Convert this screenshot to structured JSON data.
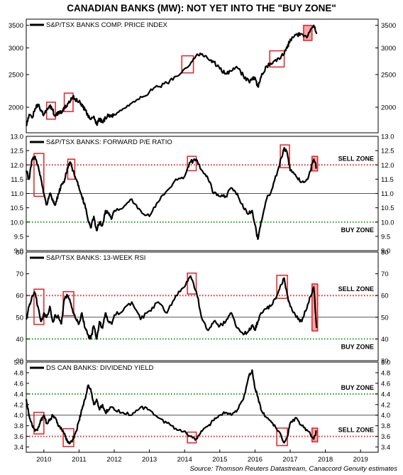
{
  "title": "CANADIAN BANKS (MW): NOT YET INTO THE \"BUY ZONE\"",
  "source": "Source: Thomson Reuters Datastream, Canaccord Genuity estimates",
  "colors": {
    "line": "#000000",
    "highlight_stroke": "#e32323",
    "highlight_fill": "#f4a6a6",
    "sell_line": "#e32323",
    "buy_line": "#1a9a1a",
    "ref_line": "#555555"
  },
  "chart_data": [
    {
      "type": "line",
      "legend": "S&P/TSX BANKS COMP. PRICE INDEX",
      "scale": "log",
      "ylim": [
        1680,
        3650
      ],
      "yticks": [
        {
          "value": 2000,
          "label": "2000"
        },
        {
          "value": 2500,
          "label": "2500"
        },
        {
          "value": 3000,
          "label": "3000"
        },
        {
          "value": 3500,
          "label": "3500"
        }
      ],
      "x": [
        2009.5,
        2009.58,
        2009.67,
        2009.75,
        2009.83,
        2009.92,
        2010.0,
        2010.08,
        2010.17,
        2010.25,
        2010.33,
        2010.42,
        2010.5,
        2010.58,
        2010.67,
        2010.75,
        2010.83,
        2010.92,
        2011.0,
        2011.08,
        2011.17,
        2011.25,
        2011.33,
        2011.42,
        2011.5,
        2011.58,
        2011.67,
        2011.75,
        2011.83,
        2011.92,
        2012.0,
        2012.25,
        2012.5,
        2012.75,
        2013.0,
        2013.25,
        2013.5,
        2013.75,
        2014.0,
        2014.17,
        2014.33,
        2014.5,
        2014.67,
        2014.83,
        2015.0,
        2015.17,
        2015.33,
        2015.5,
        2015.67,
        2015.83,
        2015.92,
        2016.0,
        2016.08,
        2016.17,
        2016.33,
        2016.5,
        2016.67,
        2016.83,
        2016.92,
        2017.0,
        2017.17,
        2017.33,
        2017.5,
        2017.67,
        2017.75
      ],
      "values": [
        1760,
        1900,
        1860,
        1980,
        2040,
        1960,
        1900,
        1960,
        2020,
        1960,
        1880,
        1940,
        1920,
        1980,
        2040,
        2080,
        2160,
        2100,
        2080,
        2020,
        1960,
        1900,
        1840,
        1880,
        1780,
        1850,
        1800,
        1860,
        1900,
        1880,
        1900,
        1980,
        2060,
        2150,
        2220,
        2300,
        2360,
        2470,
        2600,
        2700,
        2850,
        2880,
        2780,
        2720,
        2600,
        2520,
        2560,
        2620,
        2480,
        2380,
        2440,
        2450,
        2300,
        2450,
        2650,
        2700,
        2800,
        2880,
        3000,
        3180,
        3280,
        3300,
        3250,
        3500,
        3300
      ],
      "highlights": [
        [
          2010.08,
          2010.33
        ],
        [
          2010.58,
          2010.83
        ],
        [
          2013.92,
          2014.25
        ],
        [
          2016.42,
          2016.83
        ],
        [
          2017.38,
          2017.62
        ]
      ]
    },
    {
      "type": "line",
      "legend": "S&P/TSX BANKS: FORWARD P/E RATIO",
      "ylim": [
        9.0,
        13.0
      ],
      "yticks": [
        {
          "value": 9.0,
          "label": "9.0"
        },
        {
          "value": 9.5,
          "label": "9.5"
        },
        {
          "value": 10.0,
          "label": "10.0"
        },
        {
          "value": 10.5,
          "label": "10.5"
        },
        {
          "value": 11.0,
          "label": "11.0"
        },
        {
          "value": 11.5,
          "label": "11.5"
        },
        {
          "value": 12.0,
          "label": "12.0"
        },
        {
          "value": 12.5,
          "label": "12.5"
        },
        {
          "value": 13.0,
          "label": "13.0"
        }
      ],
      "sell_zone": {
        "value": 12.0,
        "label": "SELL ZONE"
      },
      "buy_zone": {
        "value": 10.0,
        "label": "BUY ZONE"
      },
      "ref_line": 11.0,
      "x": [
        2009.5,
        2009.58,
        2009.67,
        2009.75,
        2009.83,
        2009.92,
        2010.0,
        2010.08,
        2010.17,
        2010.25,
        2010.33,
        2010.42,
        2010.5,
        2010.58,
        2010.67,
        2010.75,
        2010.83,
        2010.92,
        2011.0,
        2011.08,
        2011.17,
        2011.25,
        2011.33,
        2011.42,
        2011.5,
        2011.58,
        2011.67,
        2011.75,
        2011.83,
        2011.92,
        2012.0,
        2012.25,
        2012.5,
        2012.75,
        2013.0,
        2013.25,
        2013.5,
        2013.75,
        2014.0,
        2014.17,
        2014.33,
        2014.5,
        2014.67,
        2014.83,
        2015.0,
        2015.17,
        2015.33,
        2015.5,
        2015.67,
        2015.83,
        2015.92,
        2016.0,
        2016.08,
        2016.17,
        2016.33,
        2016.5,
        2016.67,
        2016.83,
        2016.92,
        2017.0,
        2017.17,
        2017.33,
        2017.5,
        2017.67,
        2017.75
      ],
      "values": [
        11.8,
        11.5,
        12.2,
        12.3,
        12.0,
        11.5,
        11.0,
        10.6,
        11.0,
        10.8,
        10.6,
        11.0,
        11.3,
        11.4,
        11.9,
        12.1,
        11.8,
        11.5,
        11.2,
        10.9,
        10.6,
        10.1,
        9.8,
        10.2,
        9.7,
        10.0,
        9.9,
        10.4,
        10.3,
        10.1,
        10.4,
        10.5,
        10.8,
        10.4,
        10.2,
        10.7,
        11.1,
        11.5,
        11.6,
        12.1,
        12.2,
        11.8,
        11.5,
        11.0,
        10.9,
        10.9,
        11.2,
        11.0,
        10.5,
        10.3,
        10.4,
        9.9,
        9.4,
        10.0,
        10.8,
        11.2,
        11.9,
        12.6,
        12.4,
        11.8,
        11.6,
        11.4,
        11.5,
        12.2,
        11.9
      ],
      "highlights": [
        [
          2009.72,
          2010.0
        ],
        [
          2010.68,
          2010.88
        ],
        [
          2014.08,
          2014.33
        ],
        [
          2016.72,
          2016.98
        ],
        [
          2017.62,
          2017.78
        ]
      ]
    },
    {
      "type": "line",
      "legend": "S&P/TSX BANKS: 13-WEEK RSI",
      "ylim": [
        30,
        80
      ],
      "yticks": [
        {
          "value": 30,
          "label": "30"
        },
        {
          "value": 40,
          "label": "40"
        },
        {
          "value": 50,
          "label": "50"
        },
        {
          "value": 60,
          "label": "60"
        },
        {
          "value": 70,
          "label": "70"
        },
        {
          "value": 80,
          "label": "80"
        }
      ],
      "sell_zone": {
        "value": 60,
        "label": "SELL ZONE"
      },
      "buy_zone": {
        "value": 40,
        "label": "BUY ZONE"
      },
      "ref_line": 50,
      "x": [
        2009.5,
        2009.58,
        2009.67,
        2009.75,
        2009.83,
        2009.92,
        2010.0,
        2010.08,
        2010.17,
        2010.25,
        2010.33,
        2010.42,
        2010.5,
        2010.58,
        2010.67,
        2010.75,
        2010.83,
        2010.92,
        2011.0,
        2011.08,
        2011.17,
        2011.25,
        2011.33,
        2011.42,
        2011.5,
        2011.58,
        2011.67,
        2011.75,
        2011.83,
        2011.92,
        2012.0,
        2012.25,
        2012.5,
        2012.75,
        2013.0,
        2013.25,
        2013.5,
        2013.75,
        2014.0,
        2014.17,
        2014.33,
        2014.5,
        2014.67,
        2014.83,
        2015.0,
        2015.17,
        2015.33,
        2015.5,
        2015.67,
        2015.83,
        2015.92,
        2016.0,
        2016.08,
        2016.17,
        2016.33,
        2016.5,
        2016.67,
        2016.83,
        2016.92,
        2017.0,
        2017.17,
        2017.33,
        2017.5,
        2017.67,
        2017.75
      ],
      "values": [
        49,
        55,
        60,
        61,
        55,
        48,
        52,
        50,
        55,
        48,
        51,
        50,
        47,
        58,
        60,
        57,
        52,
        49,
        47,
        52,
        45,
        42,
        40,
        46,
        40,
        48,
        45,
        52,
        48,
        47,
        51,
        53,
        57,
        49,
        53,
        57,
        52,
        60,
        64,
        69,
        62,
        49,
        44,
        48,
        46,
        48,
        52,
        45,
        42,
        44,
        46,
        44,
        48,
        52,
        54,
        56,
        62,
        68,
        60,
        55,
        50,
        48,
        56,
        64,
        45
      ],
      "highlights": [
        [
          2009.72,
          2010.0
        ],
        [
          2010.55,
          2010.85
        ],
        [
          2014.08,
          2014.33
        ],
        [
          2016.62,
          2016.92
        ],
        [
          2017.62,
          2017.78
        ]
      ]
    },
    {
      "type": "line",
      "legend": "DS CAN BANKS: DIVIDEND YIELD",
      "ylim": [
        3.3,
        5.0
      ],
      "yticks": [
        {
          "value": 3.4,
          "label": "3.4"
        },
        {
          "value": 3.6,
          "label": "3.6"
        },
        {
          "value": 3.8,
          "label": "3.8"
        },
        {
          "value": 4.0,
          "label": "4.0"
        },
        {
          "value": 4.2,
          "label": "4.2"
        },
        {
          "value": 4.4,
          "label": "4.4"
        },
        {
          "value": 4.6,
          "label": "4.6"
        },
        {
          "value": 4.8,
          "label": "4.8"
        },
        {
          "value": 5.0,
          "label": "5.0"
        }
      ],
      "buy_zone": {
        "value": 4.4,
        "label": "BUY ZONE"
      },
      "sell_zone": {
        "value": 3.6,
        "label": "SELL ZONE"
      },
      "ref_line": 4.0,
      "x": [
        2009.5,
        2009.58,
        2009.67,
        2009.75,
        2009.83,
        2009.92,
        2010.0,
        2010.08,
        2010.17,
        2010.25,
        2010.33,
        2010.42,
        2010.5,
        2010.58,
        2010.67,
        2010.75,
        2010.83,
        2010.92,
        2011.0,
        2011.08,
        2011.17,
        2011.25,
        2011.33,
        2011.42,
        2011.5,
        2011.58,
        2011.67,
        2011.75,
        2011.83,
        2011.92,
        2012.0,
        2012.25,
        2012.5,
        2012.75,
        2013.0,
        2013.25,
        2013.5,
        2013.75,
        2014.0,
        2014.17,
        2014.33,
        2014.5,
        2014.67,
        2014.83,
        2015.0,
        2015.17,
        2015.33,
        2015.5,
        2015.67,
        2015.83,
        2015.92,
        2016.0,
        2016.08,
        2016.17,
        2016.33,
        2016.5,
        2016.67,
        2016.83,
        2016.92,
        2017.0,
        2017.17,
        2017.33,
        2017.5,
        2017.67,
        2017.75
      ],
      "values": [
        4.3,
        4.0,
        3.8,
        3.7,
        3.75,
        3.9,
        4.0,
        3.85,
        3.9,
        4.0,
        3.95,
        3.8,
        3.75,
        3.65,
        3.5,
        3.48,
        3.55,
        3.7,
        3.9,
        4.1,
        4.3,
        4.55,
        4.5,
        4.2,
        4.3,
        4.1,
        4.2,
        4.05,
        4.1,
        4.15,
        4.1,
        4.05,
        4.0,
        4.15,
        4.1,
        3.95,
        3.85,
        3.75,
        3.7,
        3.6,
        3.55,
        3.7,
        3.8,
        3.9,
        4.0,
        4.05,
        4.0,
        4.1,
        4.3,
        4.75,
        4.85,
        4.5,
        4.35,
        4.1,
        3.95,
        3.85,
        3.7,
        3.48,
        3.6,
        3.85,
        3.95,
        3.8,
        3.7,
        3.55,
        3.7
      ],
      "highlights": [
        [
          2009.72,
          2010.0
        ],
        [
          2010.55,
          2010.85
        ],
        [
          2014.08,
          2014.33
        ],
        [
          2016.62,
          2016.92
        ],
        [
          2017.62,
          2017.78
        ]
      ]
    }
  ],
  "x_axis": {
    "xlim": [
      2009.5,
      2019.5
    ],
    "ticks": [
      {
        "pos": 2010,
        "label": "2010"
      },
      {
        "pos": 2011,
        "label": "2011"
      },
      {
        "pos": 2012,
        "label": "2012"
      },
      {
        "pos": 2013,
        "label": "2013"
      },
      {
        "pos": 2014,
        "label": "2014"
      },
      {
        "pos": 2015,
        "label": "2015"
      },
      {
        "pos": 2016,
        "label": "2016"
      },
      {
        "pos": 2017,
        "label": "2017"
      },
      {
        "pos": 2018,
        "label": "2018"
      },
      {
        "pos": 2019,
        "label": "2019"
      }
    ]
  }
}
